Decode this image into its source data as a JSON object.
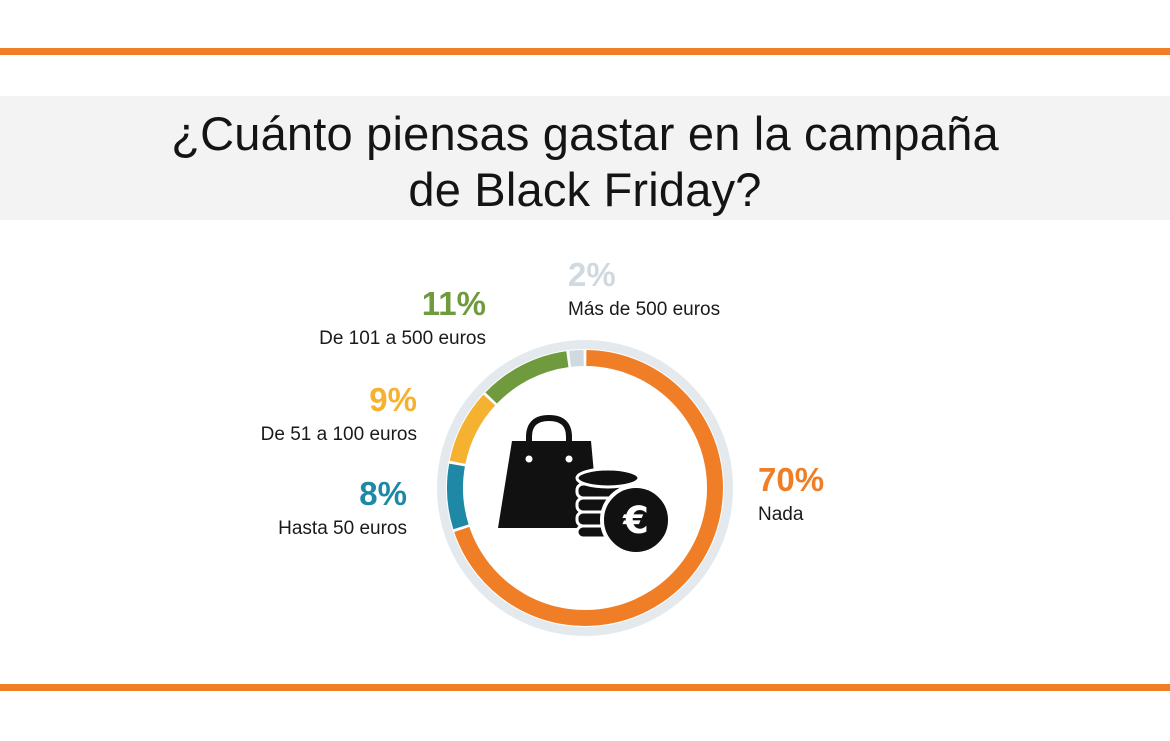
{
  "header": {
    "title_line1": "¿Cuánto piensas gastar en la campaña",
    "title_line2": "de Black Friday?"
  },
  "colors": {
    "accent": "#f07e26",
    "ring_bg": "#e3e9ed",
    "center_icon": "#111111"
  },
  "icons": {
    "center": "shopping-bag-coins-euro-icon"
  },
  "chart_data": {
    "type": "pie",
    "style": "donut",
    "title": "¿Cuánto piensas gastar en la campaña de Black Friday?",
    "unit": "%",
    "slices": [
      {
        "label": "Nada",
        "value": 70,
        "display": "70%",
        "color": "#f07e26"
      },
      {
        "label": "Hasta 50 euros",
        "value": 8,
        "display": "8%",
        "color": "#1f88a7"
      },
      {
        "label": "De 51 a 100 euros",
        "value": 9,
        "display": "9%",
        "color": "#f5b130"
      },
      {
        "label": "De 101 a 500 euros",
        "value": 11,
        "display": "11%",
        "color": "#6f9a3e"
      },
      {
        "label": "Más de 500 euros",
        "value": 2,
        "display": "2%",
        "color": "#cfd9df"
      }
    ]
  }
}
